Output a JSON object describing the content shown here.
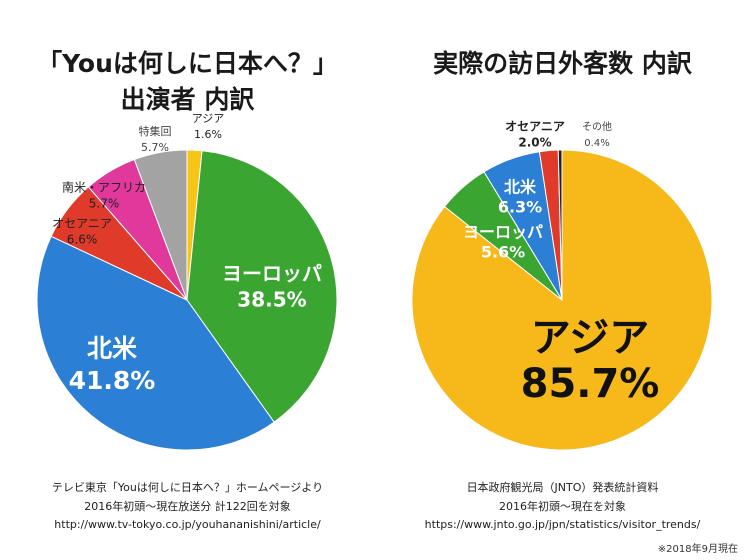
{
  "charts": [
    {
      "title_line1": "「Youは何しに日本へ？」",
      "title_line2": "出演者 内訳",
      "source": [
        "テレビ東京「Youは何しに日本へ？」ホームページより",
        "2016年初頭〜現在放送分 計122回を対象",
        "http://www.tv-tokyo.co.jp/youhananishini/article/"
      ]
    },
    {
      "title_line1": "実際の訪日外客数 内訳",
      "title_line2": "",
      "source": [
        "日本政府観光局（JNTO）発表統計資料",
        "2016年初頭〜現在を対象",
        "https://www.jnto.go.jp/jpn/statistics/visitor_trends/"
      ]
    }
  ],
  "footnote": "※2018年9月現在",
  "chart_data": [
    {
      "type": "pie",
      "title": "「Youは何しに日本へ？」出演者 内訳",
      "slices": [
        {
          "label": "アジア",
          "value": 1.6,
          "value_label": "1.6%",
          "color": "#f5c518"
        },
        {
          "label": "ヨーロッパ",
          "value": 38.5,
          "value_label": "38.5%",
          "color": "#3aa531"
        },
        {
          "label": "北米",
          "value": 41.8,
          "value_label": "41.8%",
          "color": "#2b7fd4"
        },
        {
          "label": "オセアニア",
          "value": 6.6,
          "value_label": "6.6%",
          "color": "#e03a2a"
        },
        {
          "label": "南米・アフリカ",
          "value": 5.7,
          "value_label": "5.7%",
          "color": "#e0399b"
        },
        {
          "label": "特集回",
          "value": 5.7,
          "value_label": "5.7%",
          "color": "#a3a3a3"
        }
      ]
    },
    {
      "type": "pie",
      "title": "実際の訪日外客数 内訳",
      "slices": [
        {
          "label": "アジア",
          "value": 85.7,
          "value_label": "85.7%",
          "color": "#f7b819"
        },
        {
          "label": "ヨーロッパ",
          "value": 5.6,
          "value_label": "5.6%",
          "color": "#3aa531"
        },
        {
          "label": "北米",
          "value": 6.3,
          "value_label": "6.3%",
          "color": "#2b7fd4"
        },
        {
          "label": "オセアニア",
          "value": 2.0,
          "value_label": "2.0%",
          "color": "#e03a2a"
        },
        {
          "label": "その他",
          "value": 0.4,
          "value_label": "0.4%",
          "color": "#222222"
        }
      ]
    }
  ]
}
